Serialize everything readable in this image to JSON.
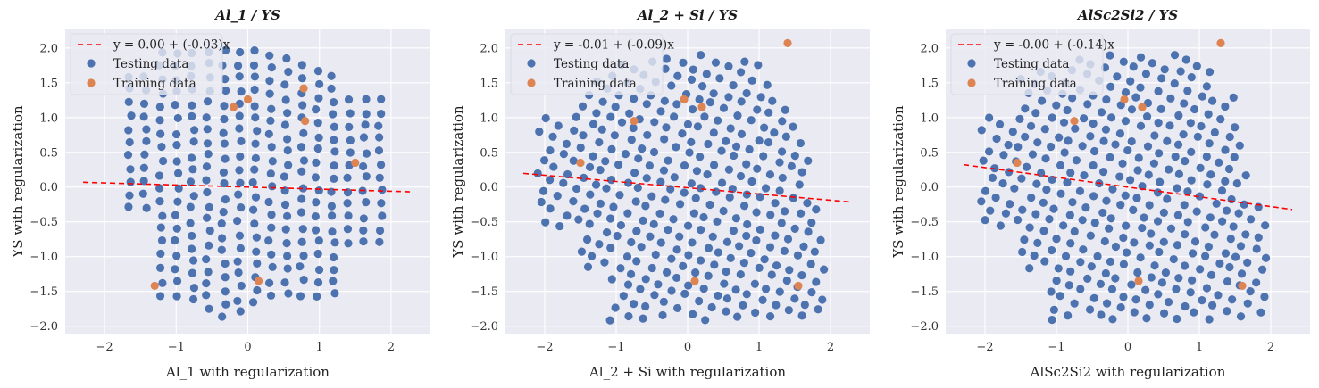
{
  "chart_data": [
    {
      "type": "scatter",
      "title": "Al_1 / YS",
      "xlabel": "Al_1 with regularization",
      "ylabel": "YS with regularization",
      "xlim": [
        -2.55,
        2.55
      ],
      "ylim": [
        -2.12,
        2.28
      ],
      "xticks": [
        -2,
        -1,
        0,
        1,
        2
      ],
      "yticks": [
        -2.0,
        -1.5,
        -1.0,
        -0.5,
        0.0,
        0.5,
        1.0,
        1.5,
        2.0
      ],
      "xtick_labels": [
        "−2",
        "−1",
        "0",
        "1",
        "2"
      ],
      "ytick_labels": [
        "−2.0",
        "−1.5",
        "−1.0",
        "−0.5",
        "0.0",
        "0.5",
        "1.0",
        "1.5",
        "2.0"
      ],
      "legend_position": "upper-left",
      "grid": true,
      "fit_line": {
        "label": "y = 0.00 + (-0.03)x",
        "intercept": 0.0,
        "slope": -0.03,
        "x_range": [
          -2.3,
          2.3
        ],
        "color": "#ff0000"
      },
      "grid_model": {
        "x_pivot": -0.2,
        "x_spread_top": 1.0,
        "x_spread_bottom": 1.0,
        "y_min": -1.92,
        "y_max": 1.95
      },
      "series": [
        {
          "name": "Testing data",
          "color": "#4c72b0",
          "sampling": "grid",
          "count": 360
        },
        {
          "name": "Training data",
          "color": "#dd8452",
          "points": [
            [
              -1.3,
              -1.42
            ],
            [
              -0.2,
              1.15
            ],
            [
              0.0,
              1.26
            ],
            [
              0.15,
              -1.35
            ],
            [
              0.78,
              1.42
            ],
            [
              0.8,
              0.95
            ],
            [
              1.5,
              0.35
            ]
          ]
        }
      ]
    },
    {
      "type": "scatter",
      "title": "Al_2 + Si / YS",
      "xlabel": "Al_2 + Si with regularization",
      "ylabel": "YS with regularization",
      "xlim": [
        -2.55,
        2.55
      ],
      "ylim": [
        -2.12,
        2.28
      ],
      "xticks": [
        -2,
        -1,
        0,
        1,
        2
      ],
      "yticks": [
        -2.0,
        -1.5,
        -1.0,
        -0.5,
        0.0,
        0.5,
        1.0,
        1.5,
        2.0
      ],
      "xtick_labels": [
        "−2",
        "−1",
        "0",
        "1",
        "2"
      ],
      "ytick_labels": [
        "−2.0",
        "−1.5",
        "−1.0",
        "−0.5",
        "0.0",
        "0.5",
        "1.0",
        "1.5",
        "2.0"
      ],
      "legend_position": "upper-left",
      "grid": true,
      "fit_line": {
        "label": "y = -0.01 + (-0.09)x",
        "intercept": -0.01,
        "slope": -0.09,
        "x_range": [
          -2.3,
          2.3
        ],
        "color": "#ff0000"
      },
      "grid_model": {
        "diamond": true,
        "y_min": -1.92,
        "y_max": 2.05
      },
      "series": [
        {
          "name": "Testing data",
          "color": "#4c72b0",
          "sampling": "diamond",
          "count": 380
        },
        {
          "name": "Training data",
          "color": "#dd8452",
          "points": [
            [
              -1.5,
              0.35
            ],
            [
              -0.75,
              0.95
            ],
            [
              -0.05,
              1.26
            ],
            [
              0.2,
              1.15
            ],
            [
              0.1,
              -1.35
            ],
            [
              1.4,
              2.07
            ],
            [
              1.55,
              -1.42
            ]
          ]
        }
      ]
    },
    {
      "type": "scatter",
      "title": "AlSc2Si2 / YS",
      "xlabel": "AlSc2Si2 with regularization",
      "ylabel": "YS with regularization",
      "xlim": [
        -2.55,
        2.55
      ],
      "ylim": [
        -2.12,
        2.28
      ],
      "xticks": [
        -2,
        -1,
        0,
        1,
        2
      ],
      "yticks": [
        -2.0,
        -1.5,
        -1.0,
        -0.5,
        0.0,
        0.5,
        1.0,
        1.5,
        2.0
      ],
      "xtick_labels": [
        "−2",
        "−1",
        "0",
        "1",
        "2"
      ],
      "ytick_labels": [
        "−2.0",
        "−1.5",
        "−1.0",
        "−0.5",
        "0.0",
        "0.5",
        "1.0",
        "1.5",
        "2.0"
      ],
      "legend_position": "upper-left",
      "grid": true,
      "fit_line": {
        "label": "y = -0.00 + (-0.14)x",
        "intercept": -0.0,
        "slope": -0.14,
        "x_range": [
          -2.3,
          2.3
        ],
        "color": "#ff0000"
      },
      "grid_model": {
        "diamond": true,
        "y_min": -1.92,
        "y_max": 2.05
      },
      "series": [
        {
          "name": "Testing data",
          "color": "#4c72b0",
          "sampling": "diamond",
          "count": 380
        },
        {
          "name": "Training data",
          "color": "#dd8452",
          "points": [
            [
              -1.55,
              0.35
            ],
            [
              -0.75,
              0.95
            ],
            [
              -0.05,
              1.26
            ],
            [
              0.2,
              1.15
            ],
            [
              0.15,
              -1.35
            ],
            [
              1.3,
              2.07
            ],
            [
              1.6,
              -1.42
            ]
          ]
        }
      ]
    }
  ],
  "style": {
    "axes_bg": "#eaeaf2",
    "grid_color": "#ffffff"
  }
}
